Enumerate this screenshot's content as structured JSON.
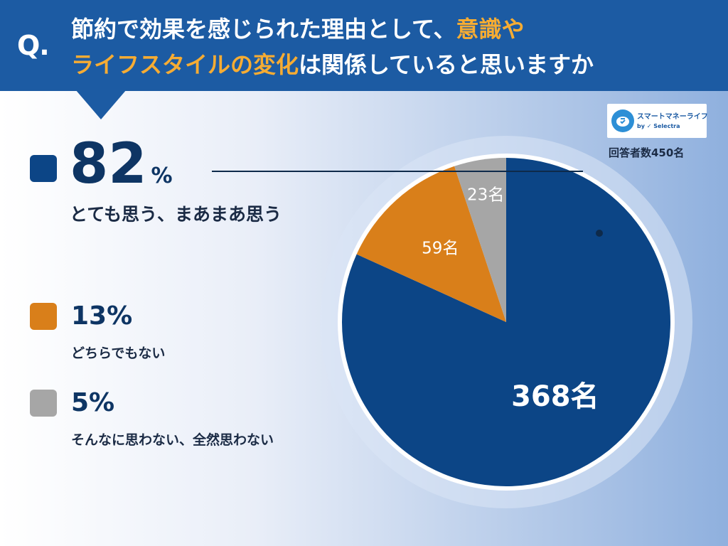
{
  "question": {
    "mark": "Q.",
    "line1_a": "節約で効果を感じられた理由として、",
    "line1_b": "意識や",
    "line2_a": "ライフスタイルの変化",
    "line2_b": "は関係していると思いますか"
  },
  "logo": {
    "name": "スマートマネーライフ",
    "byline": "by ✓ Selectra"
  },
  "respondents": "回答者数450名",
  "legend": [
    {
      "percent": "82",
      "percent_sign": "%",
      "label": "とても思う、まあまあ思う"
    },
    {
      "percent": "13%",
      "label": "どちらでもない"
    },
    {
      "percent": "5%",
      "label": "そんなに思わない、全然思わない"
    }
  ],
  "colors": {
    "header": "#1c5ba3",
    "highlight": "#f6ac33",
    "agree": "#0c4586",
    "neutral": "#d97f1a",
    "disagree": "#a6a6a6"
  },
  "chart_data": {
    "type": "pie",
    "total": 450,
    "slices": [
      {
        "label": "とても思う、まあまあ思う",
        "value": 368,
        "percent": 82,
        "color": "#0c4586",
        "data_label": "368名"
      },
      {
        "label": "どちらでもない",
        "value": 59,
        "percent": 13,
        "color": "#d97f1a",
        "data_label": "59名"
      },
      {
        "label": "そんなに思わない、全然思わない",
        "value": 23,
        "percent": 5,
        "color": "#a6a6a6",
        "data_label": "23名"
      }
    ],
    "start_angle": "12 o'clock",
    "direction": "clockwise",
    "legend_position": "left"
  }
}
